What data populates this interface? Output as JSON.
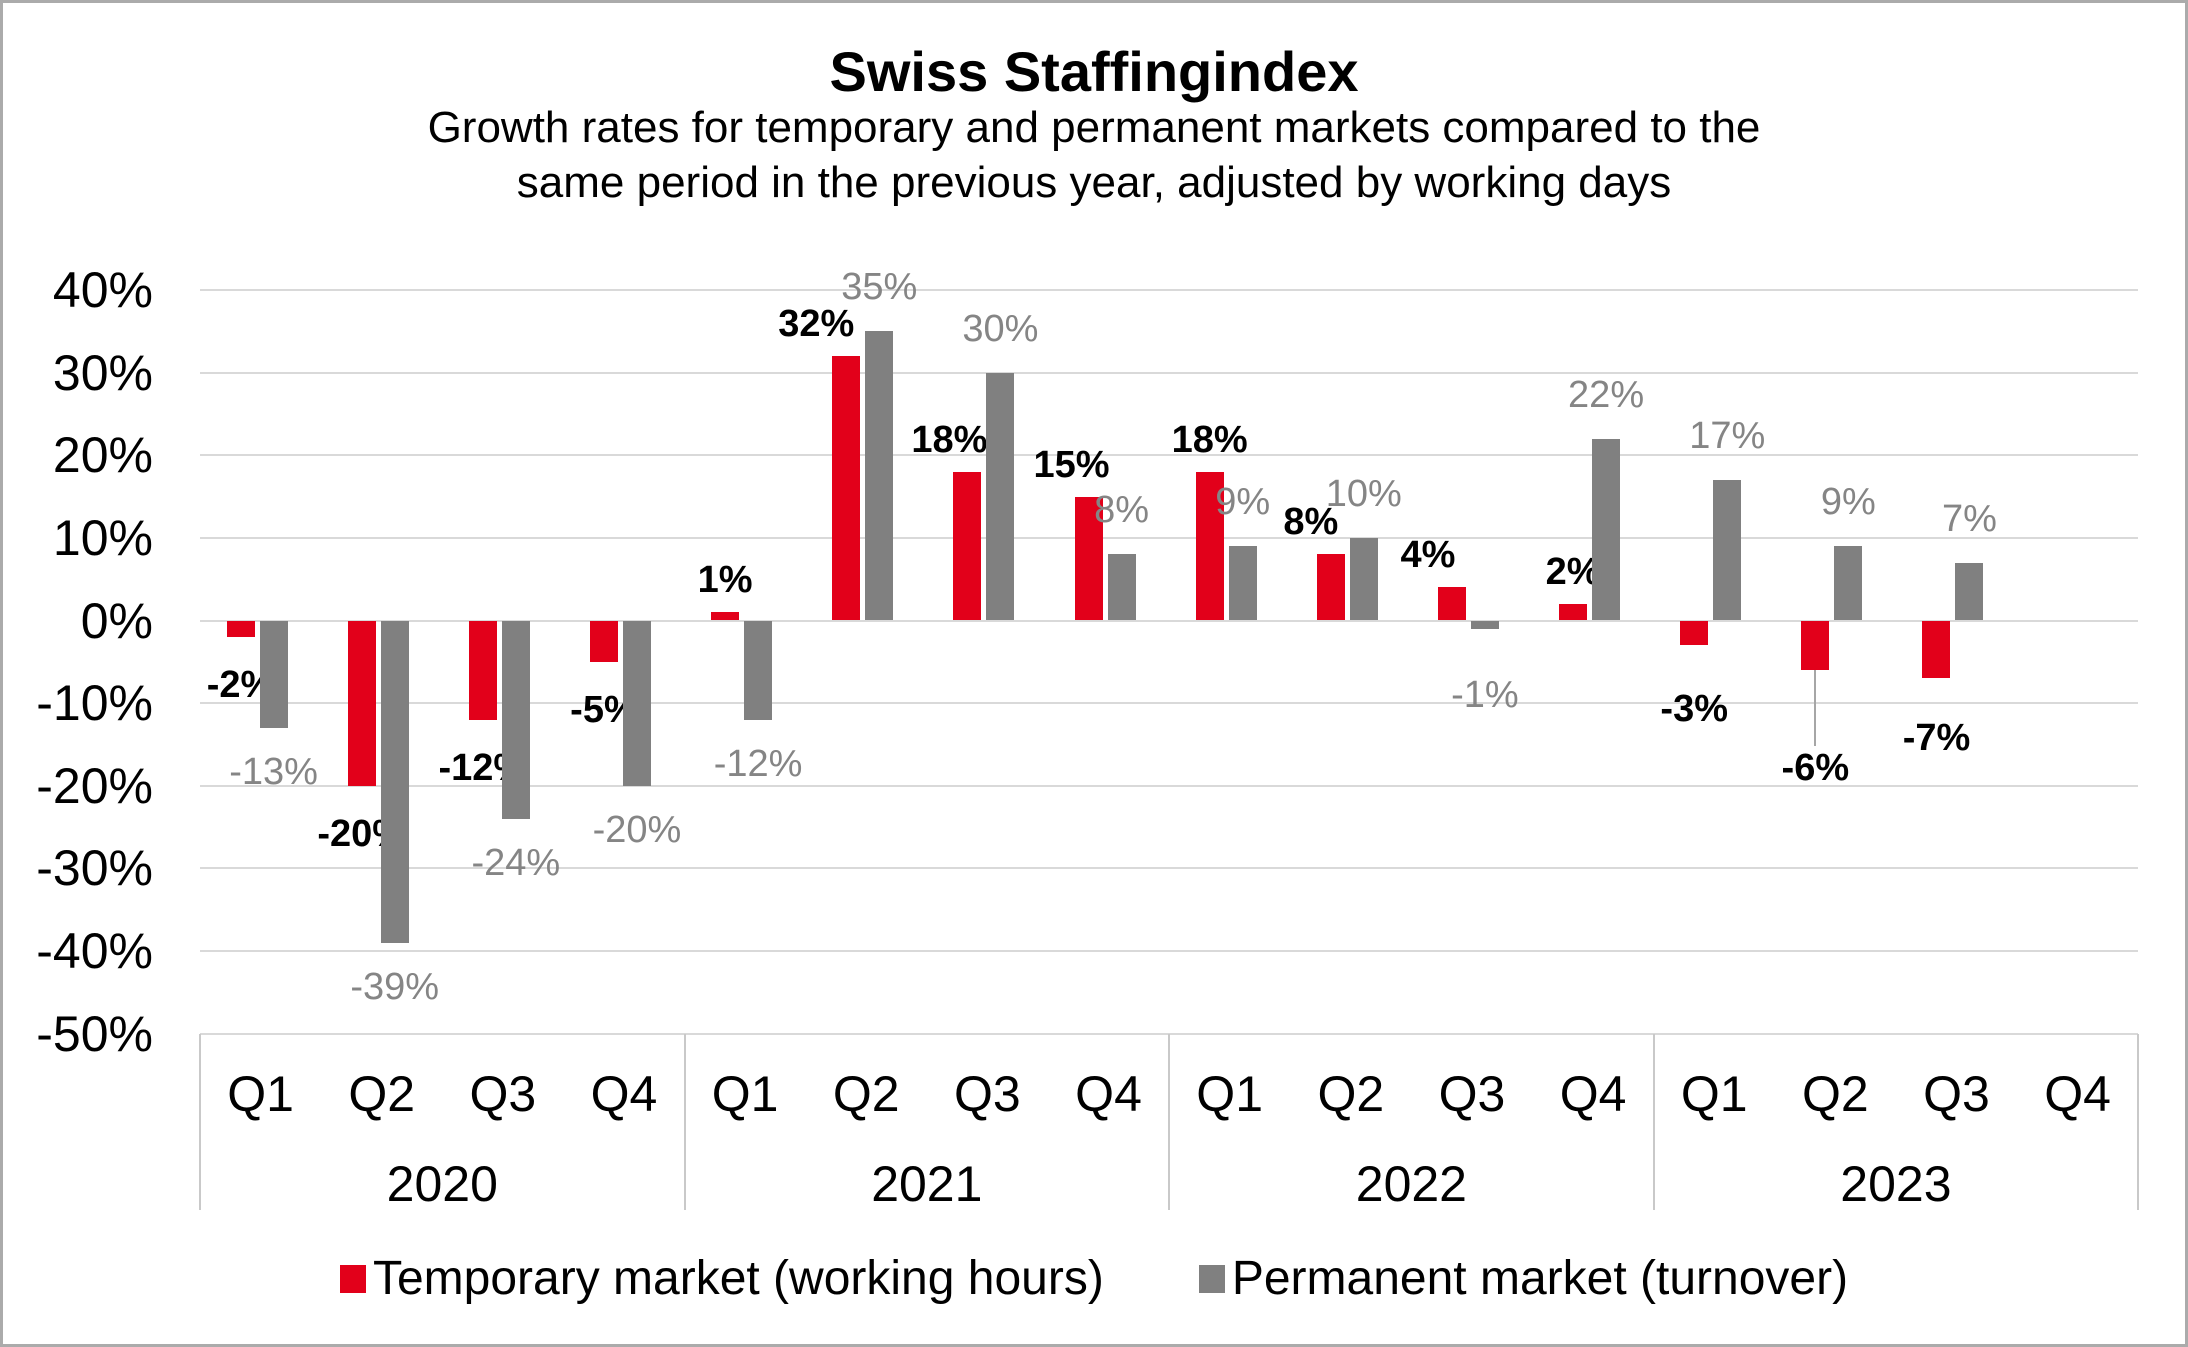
{
  "title": "Swiss Staffingindex",
  "subtitle_line1": "Growth rates for temporary and permanent markets compared to the",
  "subtitle_line2": "same period in the previous year, adjusted by working days",
  "chart_data": {
    "type": "bar",
    "title": "Swiss Staffingindex",
    "subtitle": "Growth rates for temporary and permanent markets compared to the same period in the previous year, adjusted by working days",
    "y_axis": {
      "unit": "%",
      "min": -50,
      "max": 40,
      "step": 10,
      "grid": true,
      "tick_labels": [
        "40%",
        "30%",
        "20%",
        "10%",
        "0%",
        "-10%",
        "-20%",
        "-30%",
        "-40%",
        "-50%"
      ]
    },
    "x_axis": {
      "quarter_labels": [
        "Q1",
        "Q2",
        "Q3",
        "Q4"
      ],
      "year_labels": [
        "2020",
        "2021",
        "2022",
        "2023"
      ]
    },
    "categories": [
      "2020 Q1",
      "2020 Q2",
      "2020 Q3",
      "2020 Q4",
      "2021 Q1",
      "2021 Q2",
      "2021 Q3",
      "2021 Q4",
      "2022 Q1",
      "2022 Q2",
      "2022 Q3",
      "2022 Q4",
      "2023 Q1",
      "2023 Q2",
      "2023 Q3",
      "2023 Q4"
    ],
    "series": [
      {
        "name": "Temporary market (working hours)",
        "color": "#e2001a",
        "values": [
          -2,
          -20,
          -12,
          -5,
          1,
          32,
          18,
          15,
          18,
          8,
          4,
          2,
          -3,
          -6,
          -7,
          null
        ],
        "data_labels": [
          "-2%",
          "-20%",
          "-12%",
          "-5%",
          "1%",
          "32%",
          "18%",
          "15%",
          "18%",
          "8%",
          "4%",
          "2%",
          "-3%",
          "-6%",
          "-7%",
          ""
        ]
      },
      {
        "name": "Permanent market (turnover)",
        "color": "#808080",
        "values": [
          -13,
          -39,
          -24,
          -20,
          -12,
          35,
          30,
          8,
          9,
          10,
          -1,
          22,
          17,
          9,
          7,
          null
        ],
        "data_labels": [
          "-13%",
          "-39%",
          "-24%",
          "-20%",
          "-12%",
          "35%",
          "30%",
          "8%",
          "9%",
          "10%",
          "-1%",
          "22%",
          "17%",
          "9%",
          "7%",
          ""
        ]
      }
    ],
    "legend": {
      "position": "bottom",
      "items": [
        {
          "label": "Temporary market (working hours)",
          "color": "#e2001a"
        },
        {
          "label": "Permanent market (turnover)",
          "color": "#808080"
        }
      ]
    }
  },
  "colors": {
    "accent_red": "#e2001a",
    "bar_gray": "#808080",
    "grid": "#d9d9d9",
    "separator": "#c9c9c9",
    "label_gray": "#858585",
    "frame_border": "#ababab",
    "background": "#ffffff",
    "text": "#000000"
  }
}
